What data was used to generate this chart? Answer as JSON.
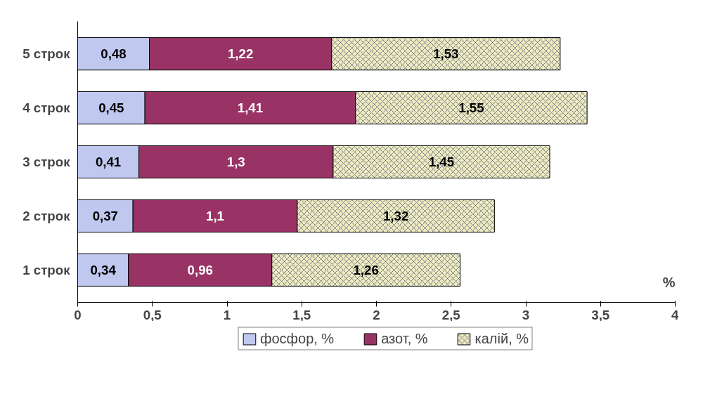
{
  "chart_data": {
    "type": "bar",
    "orientation": "horizontal",
    "stacked": true,
    "categories": [
      "5 строк",
      "4 строк",
      "3 строк",
      "2 строк",
      "1 строк"
    ],
    "series": [
      {
        "name": "фосфор, %",
        "color": "#c0c8f0",
        "values": [
          0.48,
          0.45,
          0.41,
          0.37,
          0.34
        ],
        "value_labels": [
          "0,48",
          "0,45",
          "0,41",
          "0,37",
          "0,34"
        ]
      },
      {
        "name": "азот, %",
        "color": "#993366",
        "values": [
          1.22,
          1.41,
          1.3,
          1.1,
          0.96
        ],
        "value_labels": [
          "1,22",
          "1,41",
          "1,3",
          "1,1",
          "0,96"
        ]
      },
      {
        "name": "калій, %",
        "color": "#ecebbf",
        "values": [
          1.53,
          1.55,
          1.45,
          1.32,
          1.26
        ],
        "value_labels": [
          "1,53",
          "1,55",
          "1,45",
          "1,32",
          "1,26"
        ]
      }
    ],
    "xlabel": "%",
    "xlim": [
      0,
      4
    ],
    "xticks": [
      0,
      {
        "value": 0.5,
        "label": "0,5"
      },
      1,
      {
        "value": 1.5,
        "label": "1,5"
      },
      2,
      {
        "value": 2.5,
        "label": "2,5"
      },
      3,
      {
        "value": 3.5,
        "label": "3,5"
      },
      4
    ],
    "grid": false,
    "legend": "bottom"
  }
}
